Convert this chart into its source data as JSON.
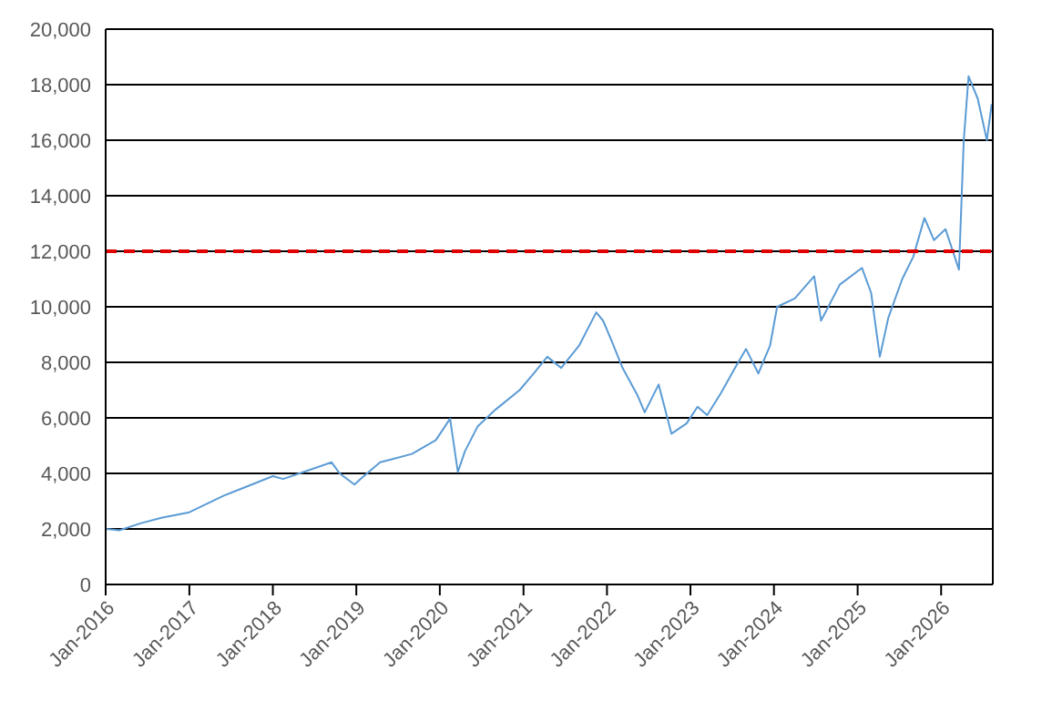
{
  "chart_data": {
    "type": "line",
    "x": [
      "2016-01-01",
      "2016-03-01",
      "2016-06-01",
      "2016-09-01",
      "2017-01-01",
      "2017-06-01",
      "2017-09-01",
      "2018-01-01",
      "2018-02-15",
      "2018-06-01",
      "2018-09-15",
      "2018-10-20",
      "2018-12-24",
      "2019-01-20",
      "2019-04-15",
      "2019-06-01",
      "2019-09-01",
      "2019-12-15",
      "2020-02-15",
      "2020-03-20",
      "2020-04-20",
      "2020-06-15",
      "2020-09-01",
      "2020-12-15",
      "2021-02-15",
      "2021-04-15",
      "2021-06-15",
      "2021-09-01",
      "2021-11-15",
      "2021-12-15",
      "2022-01-20",
      "2022-03-10",
      "2022-05-15",
      "2022-06-15",
      "2022-08-15",
      "2022-10-10",
      "2022-12-15",
      "2023-02-01",
      "2023-03-15",
      "2023-05-15",
      "2023-07-15",
      "2023-09-01",
      "2023-10-25",
      "2023-12-15",
      "2024-01-15",
      "2024-04-01",
      "2024-06-25",
      "2024-07-25",
      "2024-10-15",
      "2025-01-20",
      "2025-03-01",
      "2025-04-08",
      "2025-05-15",
      "2025-07-15",
      "2025-09-01",
      "2025-10-20",
      "2025-12-01",
      "2026-01-20",
      "2026-03-20",
      "2026-04-10",
      "2026-05-01",
      "2026-06-10",
      "2026-07-20",
      "2026-08-10"
    ],
    "series": [
      {
        "color": "#5b9bd5",
        "values": [
          2000,
          1950,
          2200,
          2400,
          2600,
          3200,
          3500,
          3900,
          3800,
          4100,
          4400,
          4000,
          3600,
          3800,
          4400,
          4500,
          4700,
          5200,
          5970,
          4050,
          4800,
          5700,
          6300,
          7000,
          7600,
          8200,
          7800,
          8600,
          9800,
          9500,
          8800,
          7800,
          6800,
          6200,
          7200,
          5430,
          5800,
          6400,
          6100,
          6900,
          7800,
          8480,
          7600,
          8600,
          10000,
          10300,
          11100,
          9500,
          10800,
          11400,
          10500,
          8200,
          9600,
          11000,
          11800,
          13200,
          12400,
          12800,
          11340,
          16000,
          18300,
          17500,
          16000,
          17300
        ]
      }
    ],
    "xlim": [
      "2016-01-01",
      "2026-08-15"
    ],
    "xticks": [
      {
        "value": "2016-01-01",
        "label": "Jan-2016"
      },
      {
        "value": "2017-01-01",
        "label": "Jan-2017"
      },
      {
        "value": "2018-01-01",
        "label": "Jan-2018"
      },
      {
        "value": "2019-01-01",
        "label": "Jan-2019"
      },
      {
        "value": "2020-01-01",
        "label": "Jan-2020"
      },
      {
        "value": "2021-01-01",
        "label": "Jan-2021"
      },
      {
        "value": "2022-01-01",
        "label": "Jan-2022"
      },
      {
        "value": "2023-01-01",
        "label": "Jan-2023"
      },
      {
        "value": "2024-01-01",
        "label": "Jan-2024"
      },
      {
        "value": "2025-01-01",
        "label": "Jan-2025"
      },
      {
        "value": "2026-01-01",
        "label": "Jan-2026"
      }
    ],
    "ylim": [
      0,
      20000
    ],
    "yticks": [
      {
        "value": 0,
        "label": "0"
      },
      {
        "value": 2000,
        "label": "2,000"
      },
      {
        "value": 4000,
        "label": "4,000"
      },
      {
        "value": 6000,
        "label": "6,000"
      },
      {
        "value": 8000,
        "label": "8,000"
      },
      {
        "value": 10000,
        "label": "10,000"
      },
      {
        "value": 12000,
        "label": "12,000"
      },
      {
        "value": 14000,
        "label": "14,000"
      },
      {
        "value": 16000,
        "label": "16,000"
      },
      {
        "value": 18000,
        "label": "18,000"
      },
      {
        "value": 20000,
        "label": "20,000"
      }
    ],
    "grid": "y",
    "marker": "none",
    "line_style": "solid",
    "ref_lines": [
      {
        "axis": "y",
        "value": 12000,
        "color": "#e00000",
        "line_style": "dashed"
      }
    ]
  }
}
